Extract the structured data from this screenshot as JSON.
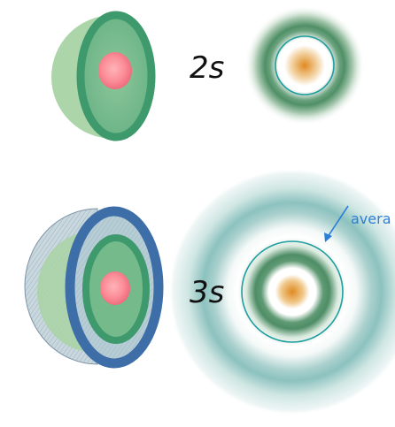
{
  "labels": {
    "orbital_2s": "2s",
    "orbital_3s": "3s",
    "annotation": "avera"
  },
  "colors": {
    "green_light": "#a9d4a6",
    "green_dark": "#3e9a6c",
    "nucleus": "#f88f98",
    "blue_shell": "#3d6ea8",
    "density_center": "#e08a22",
    "teal_ring": "#1e9ea0",
    "arrow": "#2b7fd6"
  }
}
